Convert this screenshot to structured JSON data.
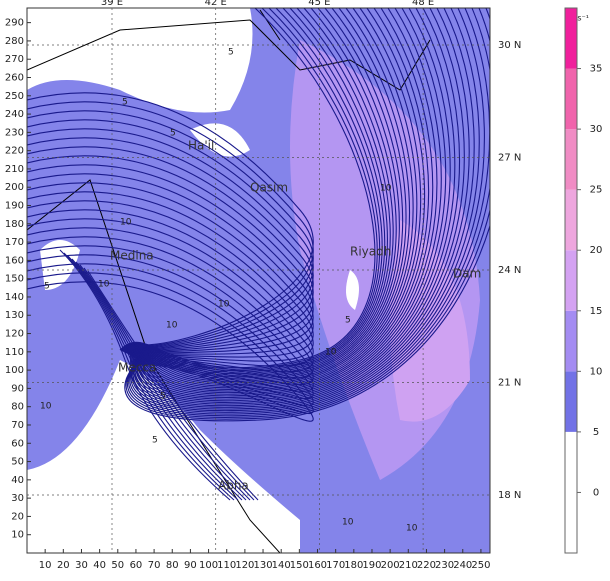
{
  "map": {
    "xticks": [
      10,
      20,
      30,
      40,
      50,
      60,
      70,
      80,
      90,
      100,
      110,
      120,
      130,
      140,
      150,
      160,
      170,
      180,
      190,
      200,
      210,
      220,
      230,
      240,
      250
    ],
    "yticks": [
      10,
      20,
      30,
      40,
      50,
      60,
      70,
      80,
      90,
      100,
      110,
      120,
      130,
      140,
      150,
      160,
      170,
      180,
      190,
      200,
      210,
      220,
      230,
      240,
      250,
      260,
      270,
      280,
      290
    ],
    "xlim": [
      0,
      255
    ],
    "ylim": [
      0,
      298
    ],
    "lon_ticks": [
      {
        "value": 39,
        "label": "39 E"
      },
      {
        "value": 42,
        "label": "42 E"
      },
      {
        "value": 45,
        "label": "45 E"
      },
      {
        "value": 48,
        "label": "48 E"
      }
    ],
    "lat_ticks": [
      {
        "value": 30,
        "label": "30 N"
      },
      {
        "value": 27,
        "label": "27 N"
      },
      {
        "value": 24,
        "label": "24 N"
      },
      {
        "value": 21,
        "label": "21 N"
      },
      {
        "value": 18,
        "label": "18 N"
      }
    ],
    "cities": [
      "Ha'il",
      "Qasim",
      "Riyadh",
      "Dam",
      "Medina",
      "Mecca",
      "Abha"
    ],
    "contour_labels": [
      "5",
      "5",
      "5",
      "5",
      "10",
      "10",
      "5",
      "10",
      "10",
      "10",
      "5",
      "5",
      "10",
      "10",
      "10",
      "10"
    ]
  },
  "colorbar": {
    "unit": "m s⁻¹",
    "ticks": [
      0,
      5,
      10,
      15,
      20,
      25,
      30,
      35
    ],
    "ylim": [
      -5,
      40
    ],
    "colors": [
      "#ffffff",
      "#ffffff",
      "#7272e6",
      "#a48cf2",
      "#d4a2f2",
      "#eea6de",
      "#f08cc4",
      "#f064ac",
      "#f0209c"
    ]
  }
}
